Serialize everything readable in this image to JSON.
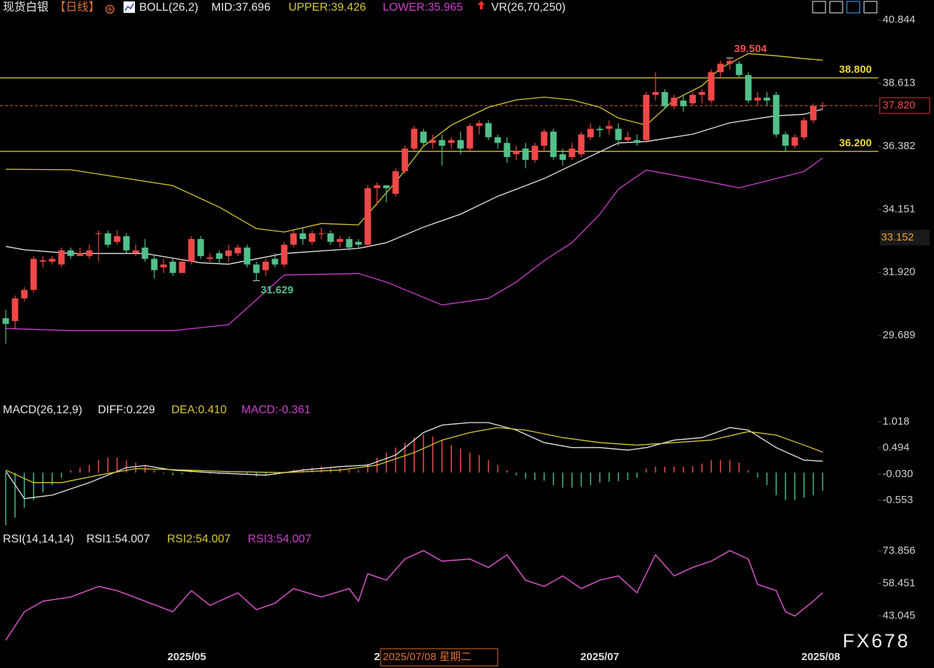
{
  "chart_data": [
    {
      "type": "candlestick",
      "title": "现货白银",
      "subtitle": "【日线】",
      "indicator": "BOLL(26,2)",
      "extra_indicator": "VR(26,70,250)",
      "up_color": "#f04848",
      "down_color": "#52c08a",
      "open": [
        30.3,
        30.2,
        31.0,
        31.3,
        32.3,
        32.3,
        32.2,
        32.7,
        32.5,
        32.5,
        33.3,
        33.3,
        33.0,
        33.2,
        32.6,
        32.8,
        32.4,
        32.1,
        32.3,
        31.9,
        32.3,
        33.1,
        32.4,
        32.6,
        32.5,
        32.6,
        32.8,
        32.2,
        32.0,
        32.4,
        32.2,
        32.9,
        33.3,
        33.0,
        33.3,
        33.3,
        33.0,
        33.1,
        33.0,
        32.9,
        34.9,
        35.0,
        34.7,
        35.5,
        36.3,
        36.9,
        36.5,
        36.6,
        36.5,
        36.6,
        36.3,
        37.1,
        37.2,
        36.7,
        36.5,
        36.1,
        36.3,
        35.9,
        36.4,
        36.9,
        36.1,
        36.0,
        36.1,
        36.7,
        37.0,
        37.0,
        37.0,
        36.6,
        36.6,
        36.6,
        38.2,
        38.3,
        37.8,
        38.0,
        37.9,
        38.2,
        38.0,
        39.0,
        39.3,
        39.3,
        38.9,
        38.0,
        38.1,
        38.2,
        36.8,
        36.4,
        36.7,
        37.3,
        37.8
      ],
      "high": [
        30.6,
        31.1,
        31.4,
        32.5,
        32.5,
        32.5,
        32.8,
        32.8,
        32.8,
        32.9,
        33.4,
        33.4,
        33.4,
        33.3,
        32.9,
        33.1,
        32.5,
        32.4,
        32.4,
        32.4,
        33.2,
        33.2,
        32.6,
        32.7,
        32.9,
        32.9,
        32.9,
        32.3,
        32.4,
        32.6,
        33.0,
        33.4,
        33.5,
        33.4,
        33.5,
        33.4,
        33.2,
        33.2,
        33.1,
        35.0,
        35.1,
        35.0,
        35.6,
        36.4,
        37.1,
        37.0,
        36.8,
        36.8,
        36.7,
        36.9,
        37.2,
        37.3,
        37.3,
        36.8,
        36.7,
        36.4,
        36.5,
        36.5,
        37.0,
        37.0,
        36.3,
        36.5,
        36.9,
        37.2,
        37.1,
        37.3,
        37.2,
        36.9,
        36.8,
        38.3,
        39.0,
        38.4,
        38.2,
        38.2,
        38.3,
        38.4,
        39.1,
        39.4,
        39.504,
        39.4,
        39.0,
        38.3,
        38.3,
        38.3,
        36.9,
        36.8,
        37.4,
        37.9,
        37.95
      ],
      "low": [
        29.4,
        29.9,
        30.9,
        31.2,
        32.1,
        32.2,
        32.1,
        32.4,
        32.5,
        32.4,
        32.3,
        32.8,
        32.9,
        32.6,
        32.5,
        32.3,
        31.7,
        31.9,
        31.8,
        31.9,
        32.2,
        32.4,
        32.3,
        32.2,
        32.3,
        32.5,
        32.1,
        31.629,
        31.8,
        32.1,
        32.1,
        32.8,
        32.9,
        32.9,
        33.1,
        32.9,
        32.8,
        32.7,
        32.8,
        32.8,
        34.3,
        34.4,
        34.6,
        35.4,
        36.2,
        36.4,
        36.3,
        35.7,
        36.3,
        36.1,
        36.2,
        36.8,
        36.6,
        36.3,
        35.8,
        35.9,
        35.6,
        35.8,
        36.2,
        35.9,
        35.7,
        35.9,
        36.0,
        36.6,
        36.7,
        36.8,
        36.4,
        36.5,
        36.4,
        36.5,
        38.0,
        37.7,
        37.7,
        37.6,
        37.8,
        37.9,
        37.9,
        38.8,
        39.1,
        38.8,
        37.9,
        37.8,
        37.8,
        36.7,
        36.2,
        36.3,
        36.6,
        37.2,
        37.7
      ],
      "close": [
        30.1,
        31.0,
        31.3,
        32.4,
        32.35,
        32.4,
        32.7,
        32.5,
        32.6,
        32.7,
        33.3,
        32.9,
        33.2,
        32.7,
        32.7,
        32.4,
        32.0,
        32.2,
        31.9,
        32.3,
        33.1,
        32.5,
        32.45,
        32.4,
        32.7,
        32.8,
        32.2,
        31.9,
        32.3,
        32.2,
        32.9,
        33.3,
        33.1,
        33.3,
        33.3,
        33.0,
        33.1,
        32.8,
        32.9,
        34.9,
        35.0,
        34.9,
        35.5,
        36.3,
        37.0,
        36.5,
        36.6,
        36.4,
        36.6,
        36.3,
        37.1,
        37.2,
        36.7,
        36.5,
        36.0,
        36.2,
        35.9,
        36.4,
        36.9,
        36.0,
        35.9,
        36.3,
        36.8,
        37.0,
        36.95,
        37.1,
        36.6,
        36.7,
        36.5,
        38.2,
        38.3,
        37.8,
        38.1,
        37.8,
        38.2,
        38.3,
        39.0,
        39.3,
        39.4,
        38.9,
        38.0,
        38.1,
        38.0,
        36.8,
        36.4,
        36.7,
        37.3,
        37.8,
        37.82
      ],
      "series": [
        {
          "name": "MID:37.696",
          "color": "#e8e8e8",
          "x": [
            0,
            2,
            7,
            15,
            21,
            24,
            30,
            38,
            41,
            45,
            49,
            53,
            58,
            62,
            66,
            69,
            74,
            78,
            83,
            86,
            88
          ],
          "values": [
            32.84,
            32.72,
            32.59,
            32.59,
            32.26,
            32.21,
            32.59,
            32.77,
            32.97,
            33.52,
            33.98,
            34.61,
            35.24,
            35.87,
            36.5,
            36.55,
            36.81,
            37.21,
            37.46,
            37.51,
            37.696
          ]
        },
        {
          "name": "UPPER:39.426",
          "color": "#d8c832",
          "x": [
            0,
            7,
            18,
            23,
            27,
            30,
            34,
            38,
            39,
            42,
            45,
            48,
            52,
            55,
            58,
            61,
            64,
            66,
            69,
            72,
            75,
            77,
            80,
            83,
            86,
            88
          ],
          "values": [
            35.57,
            35.55,
            34.99,
            34.23,
            33.47,
            33.35,
            33.65,
            33.6,
            33.98,
            35.11,
            36.38,
            37.13,
            37.76,
            38.02,
            38.12,
            38.02,
            37.76,
            37.38,
            37.13,
            38.02,
            38.52,
            39.15,
            39.66,
            39.58,
            39.48,
            39.426
          ]
        },
        {
          "name": "LOWER:35.965",
          "color": "#d03ed0",
          "x": [
            0,
            7,
            18,
            24,
            27,
            30,
            38,
            41,
            47,
            52,
            55,
            58,
            61,
            64,
            66,
            69,
            74,
            79,
            83,
            86,
            88
          ],
          "values": [
            29.94,
            29.86,
            29.86,
            30.07,
            30.95,
            31.83,
            31.88,
            31.58,
            30.77,
            31.0,
            31.58,
            32.34,
            32.97,
            33.98,
            34.86,
            35.54,
            35.24,
            34.91,
            35.24,
            35.49,
            35.965
          ]
        }
      ],
      "ylim": [
        27.42,
        41.1
      ],
      "yticks": [
        40.844,
        38.613,
        36.382,
        34.151,
        {
          "value": 31.92,
          "label": "31.920"
        },
        29.689
      ],
      "levels": [
        {
          "value": 38.8,
          "label": "38.800",
          "color": "#e8d83a"
        },
        {
          "value": 36.2,
          "label": "36.200",
          "color": "#e8d83a"
        }
      ],
      "last_price": {
        "value": 37.82,
        "label": "37.820",
        "color": "#e06a2a"
      },
      "price_tag": {
        "value": 33.152,
        "label": "33.152",
        "color": "#f0a020"
      },
      "annotations": [
        {
          "index": 78,
          "value": 39.504,
          "label": "39.504",
          "color": "#f05050"
        },
        {
          "index": 27,
          "value": 31.629,
          "label": "31.629",
          "color": "#52c08a"
        }
      ]
    },
    {
      "type": "macd",
      "title": "MACD(26,12,9)",
      "histogram_label": "MACD:-0.361",
      "histogram_label_color": "#d040d0",
      "up_color": "#e04848",
      "down_color": "#3fb07a",
      "values": [
        -1.05,
        -0.9,
        -0.7,
        -0.55,
        -0.4,
        -0.25,
        -0.1,
        0.05,
        0.1,
        0.15,
        0.25,
        0.3,
        0.3,
        0.25,
        0.2,
        0.15,
        0.05,
        -0.02,
        -0.05,
        -0.03,
        0.05,
        0.02,
        -0.02,
        -0.03,
        -0.02,
        0.01,
        -0.03,
        -0.08,
        -0.06,
        -0.04,
        0.02,
        0.06,
        0.08,
        0.1,
        0.12,
        0.1,
        0.09,
        0.06,
        0.05,
        0.18,
        0.3,
        0.4,
        0.5,
        0.6,
        0.7,
        0.76,
        0.72,
        0.65,
        0.55,
        0.48,
        0.4,
        0.35,
        0.25,
        0.15,
        0.05,
        -0.05,
        -0.12,
        -0.15,
        -0.16,
        -0.25,
        -0.3,
        -0.3,
        -0.28,
        -0.25,
        -0.2,
        -0.18,
        -0.17,
        -0.15,
        -0.1,
        0.08,
        0.12,
        0.12,
        0.12,
        0.12,
        0.13,
        0.18,
        0.25,
        0.25,
        0.25,
        0.2,
        0.05,
        -0.1,
        -0.25,
        -0.45,
        -0.55,
        -0.55,
        -0.5,
        -0.45,
        -0.361
      ],
      "series": [
        {
          "name": "DIFF:0.229",
          "color": "#e8e8e8",
          "x": [
            0,
            2,
            5,
            9,
            13,
            15,
            18,
            22,
            28,
            32,
            36,
            39,
            42,
            45,
            47,
            50,
            52,
            55,
            58,
            61,
            64,
            67,
            69,
            72,
            75,
            78,
            80,
            83,
            86,
            88
          ],
          "values": [
            0.03,
            -0.52,
            -0.45,
            -0.2,
            0.1,
            0.14,
            0.05,
            0,
            -0.05,
            0.05,
            0.12,
            0.15,
            0.35,
            0.8,
            0.95,
            1.0,
            1.0,
            0.85,
            0.6,
            0.5,
            0.5,
            0.45,
            0.5,
            0.65,
            0.7,
            0.9,
            0.85,
            0.5,
            0.25,
            0.229
          ]
        },
        {
          "name": "DEA:0.410",
          "color": "#d8c832",
          "x": [
            0,
            3,
            6,
            10,
            14,
            18,
            24,
            30,
            36,
            40,
            44,
            47,
            50,
            53,
            56,
            60,
            64,
            68,
            72,
            76,
            80,
            83,
            86,
            88
          ],
          "values": [
            0.05,
            -0.2,
            -0.2,
            -0.05,
            0.08,
            0.06,
            0.02,
            0,
            0.05,
            0.15,
            0.4,
            0.65,
            0.8,
            0.9,
            0.85,
            0.7,
            0.6,
            0.55,
            0.6,
            0.65,
            0.82,
            0.75,
            0.55,
            0.41
          ]
        }
      ],
      "ylim": [
        -1.18,
        1.13
      ],
      "yticks": [
        1.018,
        0.494,
        {
          "value": -0.03,
          "label": "-0.030"
        },
        -0.553
      ]
    },
    {
      "type": "line",
      "title": "RSI(14,14,14)",
      "x": [
        0,
        2,
        4,
        7,
        10,
        12,
        15,
        18,
        20,
        22,
        25,
        27,
        29,
        31,
        34,
        37,
        38,
        39,
        41,
        43,
        45,
        47,
        50,
        52,
        54,
        56,
        58,
        60,
        62,
        64,
        66,
        68,
        70,
        72,
        74,
        76,
        78,
        80,
        81,
        83,
        84,
        85,
        87,
        88
      ],
      "series": [
        {
          "name": "RSI1:54.007",
          "color": "#e8e8e8",
          "values": [
            31.5,
            45,
            50,
            52,
            57,
            55,
            50,
            45,
            55,
            48,
            54,
            46,
            49,
            56,
            52,
            56,
            50,
            63,
            60,
            70,
            74,
            69,
            70,
            66,
            72,
            60,
            57,
            62,
            56,
            60,
            62,
            54,
            72,
            62,
            66,
            69,
            74,
            70,
            58,
            55,
            45,
            43,
            50,
            54.007
          ]
        },
        {
          "name": "RSI2:54.007",
          "color": "#d8c832",
          "values": [
            31.5,
            45,
            50,
            52,
            57,
            55,
            50,
            45,
            55,
            48,
            54,
            46,
            49,
            56,
            52,
            56,
            50,
            63,
            60,
            70,
            74,
            69,
            70,
            66,
            72,
            60,
            57,
            62,
            56,
            60,
            62,
            54,
            72,
            62,
            66,
            69,
            74,
            70,
            58,
            55,
            45,
            43,
            50,
            54.007
          ]
        },
        {
          "name": "RSI3:54.007",
          "color": "#d03ed0",
          "values": [
            31.5,
            45,
            50,
            52,
            57,
            55,
            50,
            45,
            55,
            48,
            54,
            46,
            49,
            56,
            52,
            56,
            50,
            63,
            60,
            70,
            74,
            69,
            70,
            66,
            72,
            60,
            57,
            62,
            56,
            60,
            62,
            54,
            72,
            62,
            66,
            69,
            74,
            70,
            58,
            55,
            45,
            43,
            50,
            54.007
          ]
        }
      ],
      "ylim": [
        28.8,
        77.9
      ],
      "yticks": [
        73.856,
        58.451,
        43.045
      ]
    }
  ],
  "x_axis": {
    "xlim": [
      -0.62,
      94.0
    ],
    "xticks": [
      {
        "value": 19.5,
        "label": "2025/05"
      },
      {
        "value": 40.0,
        "label": "2"
      },
      {
        "value": 64,
        "label": "2025/07"
      },
      {
        "value": 87.8,
        "label": "2025/08"
      }
    ],
    "crosshair_label": "2025/07/08 星期二"
  },
  "watermark": "FX678"
}
